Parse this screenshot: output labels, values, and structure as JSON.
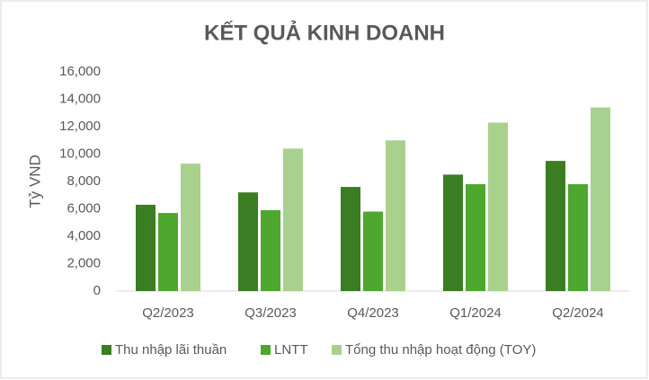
{
  "chart_data": {
    "type": "bar",
    "title": "KẾT QUẢ KINH DOANH",
    "y_label": "Tỷ VND",
    "categories": [
      "Q2/2023",
      "Q3/2023",
      "Q4/2023",
      "Q1/2024",
      "Q2/2024"
    ],
    "series": [
      {
        "name": "Thu nhập lãi thuần",
        "color": "#3a7d22",
        "values": [
          6300,
          7200,
          7600,
          8500,
          9500
        ]
      },
      {
        "name": "LNTT",
        "color": "#4ea72e",
        "values": [
          5700,
          5900,
          5800,
          7800,
          7800
        ]
      },
      {
        "name": "Tổng thu nhập hoạt động (TOY)",
        "color": "#a9d18e",
        "values": [
          9300,
          10400,
          11000,
          12300,
          13400
        ]
      }
    ],
    "ylim": [
      0,
      16000
    ],
    "yticks": [
      0,
      {
        "value": 2000,
        "label": "2,000"
      },
      {
        "value": 4000,
        "label": "4,000"
      },
      {
        "value": 6000,
        "label": "6,000"
      },
      {
        "value": 8000,
        "label": "8,000"
      },
      {
        "value": 10000,
        "label": "10,000"
      },
      {
        "value": 12000,
        "label": "12,000"
      },
      {
        "value": 14000,
        "label": "14,000"
      },
      {
        "value": 16000,
        "label": "16,000"
      }
    ],
    "grid": false,
    "legend": "bottom"
  }
}
